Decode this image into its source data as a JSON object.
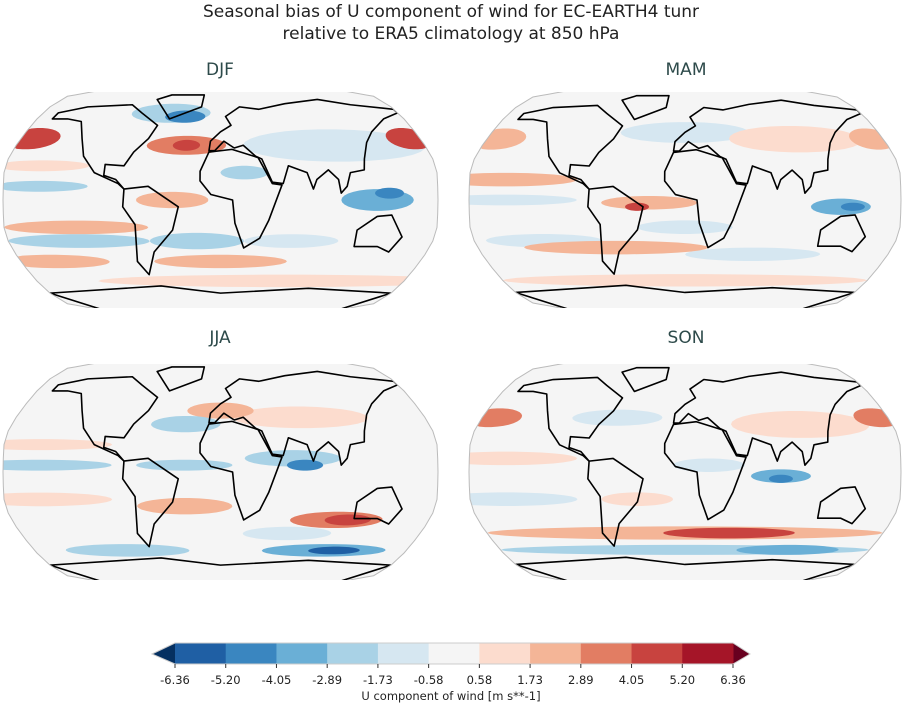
{
  "title_line1": "Seasonal bias of U component of wind for EC-EARTH4 tunr",
  "title_line2": "relative to ERA5 climatology at 850 hPa",
  "colorbar": {
    "label": "U component of wind [m s**-1]",
    "levels": [
      "-6.36",
      "-5.20",
      "-4.05",
      "-2.89",
      "-1.73",
      "-0.58",
      "0.58",
      "1.73",
      "2.89",
      "4.05",
      "5.20",
      "6.36"
    ],
    "colors": [
      "#1f5fa4",
      "#3a86c0",
      "#6aafd6",
      "#a9d2e6",
      "#d6e7f1",
      "#f5f5f5",
      "#fcdcce",
      "#f4b597",
      "#e27d63",
      "#c8433f",
      "#a51528"
    ],
    "extend_low_color": "#053061",
    "extend_high_color": "#67001f"
  },
  "chart_data": {
    "type": "map",
    "projection": "Robinson",
    "units": "m s**-1",
    "panels": [
      {
        "title": "DJF",
        "anomalies_lon_lat_dlon_dlat_value": [
          [
            100,
            40,
            80,
            12,
            -1.2
          ],
          [
            60,
            -60,
            180,
            5,
            1.2
          ],
          [
            -170,
            45,
            25,
            8,
            4.5
          ],
          [
            170,
            45,
            20,
            8,
            4.5
          ],
          [
            -30,
            40,
            35,
            7,
            3.5
          ],
          [
            -30,
            40,
            12,
            4,
            4.6
          ],
          [
            -50,
            65,
            40,
            8,
            -2.5
          ],
          [
            -35,
            62,
            20,
            5,
            -4.5
          ],
          [
            130,
            0,
            30,
            8,
            -3
          ],
          [
            140,
            5,
            12,
            4,
            -4.5
          ],
          [
            -120,
            -20,
            60,
            5,
            2
          ],
          [
            -120,
            -30,
            60,
            5,
            -2
          ],
          [
            -20,
            -30,
            40,
            6,
            -2.3
          ],
          [
            60,
            -30,
            40,
            5,
            -1.5
          ],
          [
            -150,
            -45,
            50,
            5,
            1.8
          ],
          [
            0,
            -45,
            60,
            5,
            2
          ],
          [
            -40,
            0,
            30,
            6,
            2
          ],
          [
            20,
            20,
            20,
            5,
            -2
          ],
          [
            -150,
            10,
            40,
            4,
            -2
          ],
          [
            -150,
            25,
            40,
            4,
            1.5
          ]
        ]
      },
      {
        "title": "MAM",
        "anomalies_lon_lat_dlon_dlat_value": [
          [
            0,
            50,
            60,
            8,
            -1.2
          ],
          [
            100,
            45,
            60,
            10,
            1.2
          ],
          [
            0,
            -60,
            180,
            5,
            1.5
          ],
          [
            -170,
            45,
            25,
            8,
            2.5
          ],
          [
            170,
            45,
            20,
            8,
            2.5
          ],
          [
            -30,
            -2,
            40,
            5,
            2.5
          ],
          [
            -40,
            -5,
            10,
            3,
            4.5
          ],
          [
            130,
            -5,
            25,
            6,
            -3
          ],
          [
            140,
            -5,
            10,
            3,
            -4.5
          ],
          [
            -150,
            15,
            60,
            5,
            2
          ],
          [
            -150,
            0,
            60,
            4,
            -1.5
          ],
          [
            -60,
            -35,
            80,
            5,
            2
          ],
          [
            60,
            -40,
            60,
            5,
            -1.5
          ],
          [
            -120,
            -30,
            50,
            5,
            -1.5
          ],
          [
            0,
            -20,
            40,
            5,
            -1.5
          ]
        ]
      },
      {
        "title": "JJA",
        "anomalies_lon_lat_dlon_dlat_value": [
          [
            70,
            40,
            60,
            8,
            1.5
          ],
          [
            60,
            10,
            40,
            6,
            -2.5
          ],
          [
            70,
            5,
            15,
            4,
            -4.5
          ],
          [
            -30,
            35,
            30,
            6,
            -2
          ],
          [
            0,
            45,
            30,
            6,
            1.8
          ],
          [
            100,
            -35,
            40,
            6,
            3
          ],
          [
            110,
            -35,
            20,
            4,
            4.5
          ],
          [
            -90,
            -58,
            60,
            5,
            -2
          ],
          [
            100,
            -58,
            60,
            5,
            -3.5
          ],
          [
            110,
            -58,
            25,
            3,
            -5.5
          ],
          [
            -30,
            -25,
            40,
            6,
            2
          ],
          [
            -150,
            -20,
            60,
            5,
            1.5
          ],
          [
            -150,
            5,
            60,
            4,
            -2
          ],
          [
            -150,
            20,
            60,
            4,
            1.5
          ],
          [
            -30,
            5,
            40,
            4,
            -2
          ],
          [
            60,
            -45,
            40,
            5,
            -1.5
          ]
        ]
      },
      {
        "title": "SON",
        "anomalies_lon_lat_dlon_dlat_value": [
          [
            100,
            35,
            60,
            10,
            1.2
          ],
          [
            0,
            -45,
            180,
            5,
            2.5
          ],
          [
            40,
            -45,
            60,
            4,
            4.3
          ],
          [
            0,
            -58,
            180,
            4,
            -2.5
          ],
          [
            100,
            -58,
            50,
            4,
            -3.5
          ],
          [
            -170,
            40,
            25,
            7,
            3.5
          ],
          [
            170,
            40,
            20,
            7,
            3.5
          ],
          [
            80,
            -3,
            25,
            5,
            -3
          ],
          [
            80,
            -5,
            10,
            3,
            -4.5
          ],
          [
            -60,
            40,
            40,
            6,
            -1.5
          ],
          [
            20,
            5,
            30,
            5,
            -1.5
          ],
          [
            -150,
            10,
            60,
            5,
            1.5
          ],
          [
            -150,
            -20,
            60,
            5,
            -1.5
          ],
          [
            -40,
            -20,
            30,
            5,
            1.5
          ]
        ]
      }
    ]
  }
}
